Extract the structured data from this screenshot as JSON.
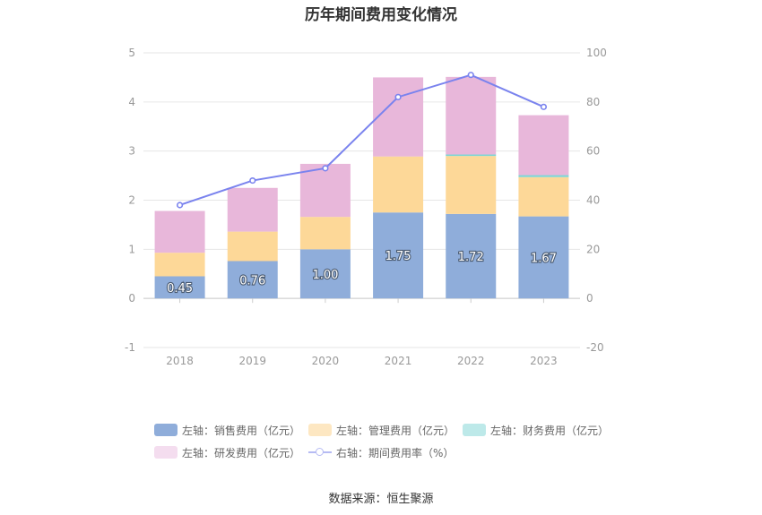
{
  "title": "历年期间费用变化情况",
  "source": "数据来源：恒生聚源",
  "chart_data": {
    "type": "bar",
    "stacked": true,
    "categories": [
      "2018",
      "2019",
      "2020",
      "2021",
      "2022",
      "2023"
    ],
    "left_axis": {
      "ylim": [
        -1,
        5
      ],
      "ticks": [
        "-1",
        "0",
        "1",
        "2",
        "3",
        "4",
        "5"
      ]
    },
    "right_axis": {
      "ylim": [
        -20,
        100
      ],
      "ticks": [
        "-20",
        "0",
        "20",
        "40",
        "60",
        "80",
        "100"
      ]
    },
    "grid": true,
    "legend_position": "bottom",
    "series": [
      {
        "name": "左轴：销售费用（亿元）",
        "axis": "left",
        "color": "#8FADDA",
        "values": [
          0.45,
          0.76,
          1.0,
          1.75,
          1.72,
          1.67
        ],
        "labels": [
          "0.45",
          "0.76",
          "1.00",
          "1.75",
          "1.72",
          "1.67"
        ]
      },
      {
        "name": "左轴：管理费用（亿元）",
        "axis": "left",
        "color": "#FDD898",
        "values": [
          0.48,
          0.6,
          0.66,
          1.14,
          1.18,
          0.8
        ]
      },
      {
        "name": "左轴：财务费用（亿元）",
        "axis": "left",
        "color": "#7ED5D5",
        "values": [
          0.0,
          0.0,
          0.0,
          0.0,
          0.03,
          0.04
        ]
      },
      {
        "name": "左轴：研发费用（亿元）",
        "axis": "left",
        "color": "#E8B7DA",
        "values": [
          0.85,
          0.89,
          1.08,
          1.61,
          1.58,
          1.22
        ]
      },
      {
        "name": "右轴：期间费用率（%）",
        "axis": "right",
        "type": "line",
        "color": "#7A83EE",
        "values": [
          38,
          48,
          53,
          82,
          91,
          78
        ]
      }
    ]
  }
}
